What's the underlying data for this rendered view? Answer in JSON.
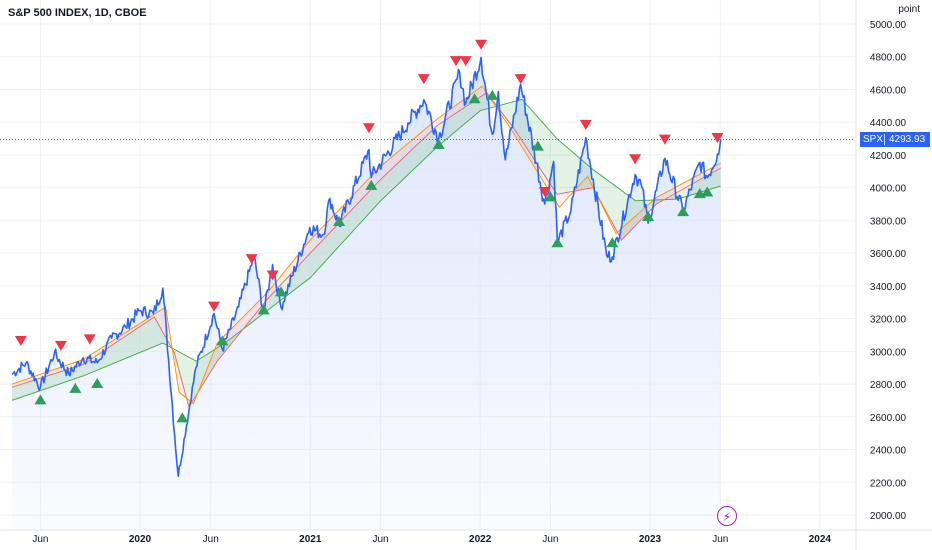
{
  "header": {
    "title": "S&P 500 INDEX, 1D, CBOE",
    "unit_label": "point"
  },
  "last_price": {
    "symbol": "SPX",
    "value": "4293.93",
    "numeric": 4293.93
  },
  "colors": {
    "price": "#2962ff",
    "band_green": "#4caf50",
    "band_red": "#e57373",
    "ma_orange": "#ff9800",
    "area_fill": "#dbe4fb",
    "sell_marker": "#f23645",
    "buy_marker": "#2e9e5b",
    "last_price_line": "#2962ff",
    "indicator_icon": "#9c27b0"
  },
  "icons": {
    "indicator": "lightning-bolt-icon",
    "buy": "triangle-up-icon",
    "sell": "triangle-down-icon"
  },
  "chart_data": {
    "type": "line",
    "title": "S&P 500 INDEX, 1D, CBOE",
    "ylabel": "point",
    "ylim": [
      1940,
      5100
    ],
    "x_ticks": [
      "Jun",
      "2020",
      "Jun",
      "2021",
      "Jun",
      "2022",
      "Jun",
      "2023",
      "Jun",
      "2024"
    ],
    "x_tick_dates": [
      "2019-06-01",
      "2020-01-01",
      "2020-06-01",
      "2021-01-01",
      "2021-06-01",
      "2022-01-01",
      "2022-06-01",
      "2023-01-01",
      "2023-06-01",
      "2024-01-01"
    ],
    "y_ticks": [
      2000,
      2200,
      2400,
      2600,
      2800,
      3000,
      3200,
      3400,
      3600,
      3800,
      4000,
      4200,
      4400,
      4600,
      4800,
      5000
    ],
    "y_tick_labels": [
      "2000.00",
      "2200.00",
      "2400.00",
      "2600.00",
      "2800.00",
      "3000.00",
      "3200.00",
      "3400.00",
      "3600.00",
      "3800.00",
      "4000.00",
      "4200.00",
      "4400.00",
      "4600.00",
      "4800.00",
      "5000.00"
    ],
    "grid": true,
    "series": [
      {
        "name": "SPX",
        "points": [
          [
            "2019-04-01",
            2860
          ],
          [
            "2019-05-01",
            2930
          ],
          [
            "2019-06-01",
            2780
          ],
          [
            "2019-07-01",
            2990
          ],
          [
            "2019-08-01",
            2860
          ],
          [
            "2019-09-01",
            2960
          ],
          [
            "2019-10-01",
            2930
          ],
          [
            "2019-11-01",
            3080
          ],
          [
            "2019-12-01",
            3150
          ],
          [
            "2020-01-01",
            3250
          ],
          [
            "2020-01-30",
            3230
          ],
          [
            "2020-02-19",
            3386
          ],
          [
            "2020-03-23",
            2237
          ],
          [
            "2020-04-30",
            2900
          ],
          [
            "2020-06-08",
            3232
          ],
          [
            "2020-06-26",
            3010
          ],
          [
            "2020-07-31",
            3271
          ],
          [
            "2020-09-02",
            3580
          ],
          [
            "2020-09-23",
            3237
          ],
          [
            "2020-10-12",
            3530
          ],
          [
            "2020-10-30",
            3270
          ],
          [
            "2020-12-31",
            3756
          ],
          [
            "2021-01-29",
            3714
          ],
          [
            "2021-02-12",
            3934
          ],
          [
            "2021-03-04",
            3768
          ],
          [
            "2021-05-07",
            4232
          ],
          [
            "2021-05-12",
            4063
          ],
          [
            "2021-07-30",
            4395
          ],
          [
            "2021-09-02",
            4537
          ],
          [
            "2021-10-04",
            4300
          ],
          [
            "2021-11-18",
            4705
          ],
          [
            "2021-12-01",
            4513
          ],
          [
            "2022-01-03",
            4796
          ],
          [
            "2022-01-27",
            4326
          ],
          [
            "2022-02-09",
            4587
          ],
          [
            "2022-02-24",
            4170
          ],
          [
            "2022-03-29",
            4631
          ],
          [
            "2022-05-20",
            3900
          ],
          [
            "2022-06-08",
            4160
          ],
          [
            "2022-06-16",
            3666
          ],
          [
            "2022-07-15",
            3860
          ],
          [
            "2022-08-16",
            4305
          ],
          [
            "2022-09-30",
            3585
          ],
          [
            "2022-10-12",
            3577
          ],
          [
            "2022-11-30",
            4080
          ],
          [
            "2022-12-13",
            4019
          ],
          [
            "2022-12-28",
            3783
          ],
          [
            "2023-02-02",
            4179
          ],
          [
            "2023-03-13",
            3855
          ],
          [
            "2023-04-18",
            4155
          ],
          [
            "2023-05-04",
            4061
          ],
          [
            "2023-05-26",
            4205
          ],
          [
            "2023-06-02",
            4293.93
          ]
        ]
      },
      {
        "name": "",
        "points": [
          [
            "2019-04-01",
            2700
          ],
          [
            "2019-09-01",
            2850
          ],
          [
            "2020-02-19",
            3050
          ],
          [
            "2020-05-01",
            2940
          ],
          [
            "2020-07-01",
            3050
          ],
          [
            "2020-10-01",
            3250
          ],
          [
            "2021-01-01",
            3450
          ],
          [
            "2021-06-01",
            3920
          ],
          [
            "2021-10-01",
            4250
          ],
          [
            "2022-01-01",
            4470
          ],
          [
            "2022-04-01",
            4540
          ],
          [
            "2022-06-15",
            4300
          ],
          [
            "2022-09-01",
            4110
          ],
          [
            "2022-12-01",
            3920
          ],
          [
            "2023-03-01",
            3930
          ],
          [
            "2023-06-02",
            4010
          ]
        ]
      },
      {
        "name": "",
        "points": [
          [
            "2019-04-01",
            2780
          ],
          [
            "2019-09-01",
            2920
          ],
          [
            "2020-02-01",
            3210
          ],
          [
            "2020-03-15",
            2990
          ],
          [
            "2020-04-15",
            2660
          ],
          [
            "2020-06-15",
            2940
          ],
          [
            "2020-10-01",
            3320
          ],
          [
            "2021-01-01",
            3600
          ],
          [
            "2021-06-01",
            4050
          ],
          [
            "2021-10-01",
            4380
          ],
          [
            "2022-01-15",
            4580
          ],
          [
            "2022-03-15",
            4360
          ],
          [
            "2022-06-15",
            3960
          ],
          [
            "2022-09-01",
            4000
          ],
          [
            "2022-11-01",
            3680
          ],
          [
            "2023-01-15",
            3900
          ],
          [
            "2023-06-02",
            4120
          ]
        ]
      },
      {
        "name": "",
        "points": [
          [
            "2019-04-01",
            2800
          ],
          [
            "2019-09-01",
            2950
          ],
          [
            "2020-02-25",
            3270
          ],
          [
            "2020-03-25",
            2750
          ],
          [
            "2020-04-25",
            2680
          ],
          [
            "2020-06-15",
            3050
          ],
          [
            "2020-10-01",
            3360
          ],
          [
            "2021-01-01",
            3680
          ],
          [
            "2021-06-01",
            4130
          ],
          [
            "2021-10-01",
            4420
          ],
          [
            "2022-01-05",
            4620
          ],
          [
            "2022-03-10",
            4350
          ],
          [
            "2022-06-20",
            3880
          ],
          [
            "2022-08-20",
            4070
          ],
          [
            "2022-10-20",
            3720
          ],
          [
            "2023-01-15",
            3940
          ],
          [
            "2023-06-02",
            4150
          ]
        ]
      }
    ],
    "signals": {
      "sell": [
        [
          "2019-04-20",
          2990
        ],
        [
          "2019-07-15",
          2960
        ],
        [
          "2019-09-15",
          3000
        ],
        [
          "2020-06-08",
          3200
        ],
        [
          "2020-08-28",
          3490
        ],
        [
          "2020-10-12",
          3390
        ],
        [
          "2021-05-07",
          4290
        ],
        [
          "2021-09-02",
          4590
        ],
        [
          "2021-11-10",
          4700
        ],
        [
          "2021-12-01",
          4700
        ],
        [
          "2022-01-03",
          4800
        ],
        [
          "2022-03-29",
          4590
        ],
        [
          "2022-08-16",
          4310
        ],
        [
          "2022-11-30",
          4100
        ],
        [
          "2023-02-02",
          4220
        ],
        [
          "2023-05-26",
          4230
        ],
        [
          "2022-05-20",
          3900
        ]
      ],
      "buy": [
        [
          "2019-06-01",
          2780
        ],
        [
          "2019-08-15",
          2850
        ],
        [
          "2019-10-01",
          2880
        ],
        [
          "2020-04-01",
          2670
        ],
        [
          "2020-06-26",
          3140
        ],
        [
          "2020-09-23",
          3330
        ],
        [
          "2020-10-30",
          3440
        ],
        [
          "2021-03-04",
          3870
        ],
        [
          "2021-05-12",
          4090
        ],
        [
          "2021-10-04",
          4340
        ],
        [
          "2021-12-20",
          4620
        ],
        [
          "2022-01-27",
          4640
        ],
        [
          "2022-05-05",
          4330
        ],
        [
          "2022-06-16",
          3740
        ],
        [
          "2022-10-12",
          3740
        ],
        [
          "2022-12-28",
          3900
        ],
        [
          "2023-03-13",
          3930
        ],
        [
          "2023-04-18",
          4040
        ],
        [
          "2023-05-04",
          4050
        ],
        [
          "2022-06-01",
          4020
        ]
      ]
    }
  }
}
